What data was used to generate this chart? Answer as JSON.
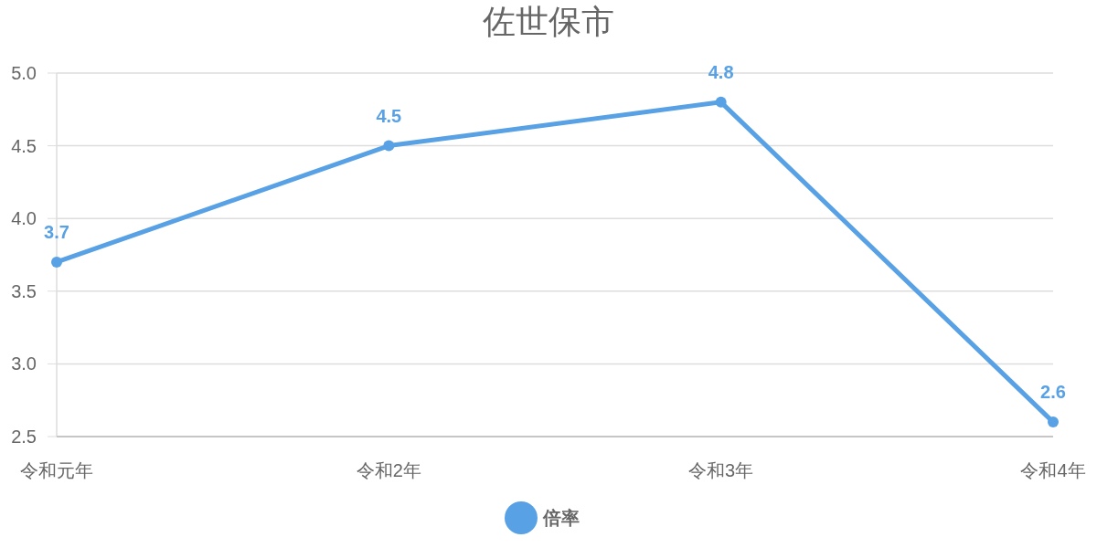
{
  "chart_data": {
    "type": "line",
    "title": "佐世保市",
    "categories": [
      "令和元年",
      "令和2年",
      "令和3年",
      "令和4年"
    ],
    "series": [
      {
        "name": "倍率",
        "color": "#59a1e5",
        "values": [
          3.7,
          4.5,
          4.8,
          2.6
        ]
      }
    ],
    "ylim": [
      2.5,
      5.0
    ],
    "yticks": [
      {
        "value": 2.5,
        "label": "2.5"
      },
      {
        "value": 3.0,
        "label": "3.0"
      },
      {
        "value": 3.5,
        "label": "3.5"
      },
      {
        "value": 4.0,
        "label": "4.0"
      },
      {
        "value": 4.5,
        "label": "4.5"
      },
      {
        "value": 5.0,
        "label": "5.0"
      }
    ],
    "grid": "y",
    "legend": "bottom",
    "marker": "circle",
    "line_style": "solid",
    "data_labels": true
  }
}
